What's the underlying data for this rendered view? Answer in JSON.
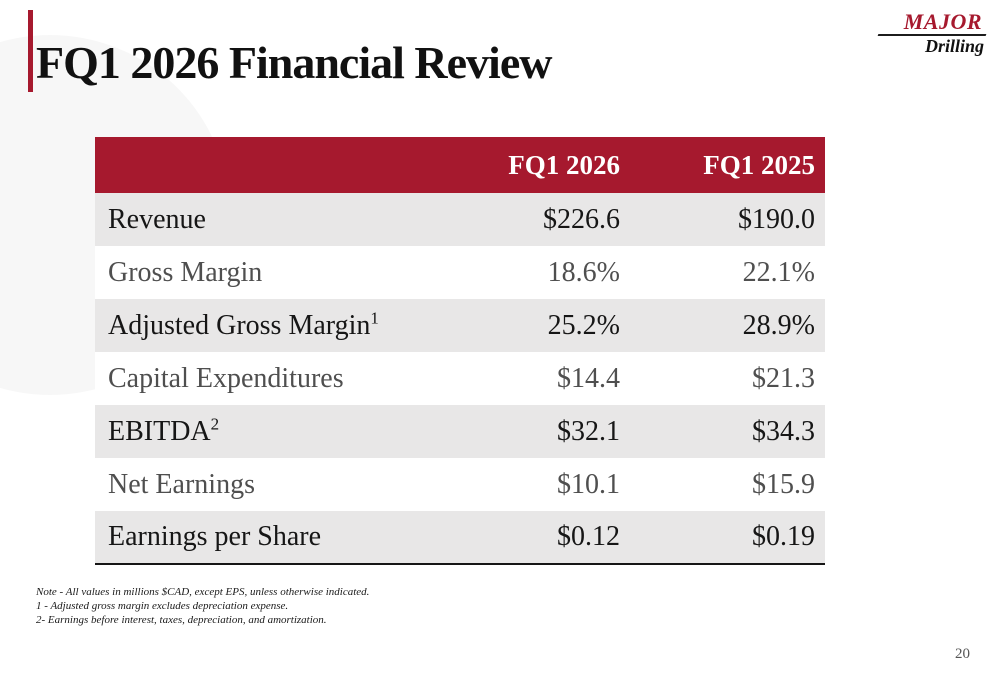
{
  "slide": {
    "title": "FQ1 2026 Financial Review",
    "page_number": "20"
  },
  "logo": {
    "primary": "MAJOR",
    "secondary": "Drilling"
  },
  "table": {
    "columns": [
      "",
      "FQ1 2026",
      "FQ1 2025"
    ],
    "rows": [
      {
        "label": "Revenue",
        "sup": "",
        "fq1_2026": "$226.6",
        "fq1_2025": "$190.0"
      },
      {
        "label": "Gross Margin",
        "sup": "",
        "fq1_2026": "18.6%",
        "fq1_2025": "22.1%"
      },
      {
        "label": "Adjusted Gross Margin",
        "sup": "1",
        "fq1_2026": "25.2%",
        "fq1_2025": "28.9%"
      },
      {
        "label": "Capital Expenditures",
        "sup": "",
        "fq1_2026": "$14.4",
        "fq1_2025": "$21.3"
      },
      {
        "label": "EBITDA",
        "sup": "2",
        "fq1_2026": "$32.1",
        "fq1_2025": "$34.3"
      },
      {
        "label": "Net Earnings",
        "sup": "",
        "fq1_2026": "$10.1",
        "fq1_2025": "$15.9"
      },
      {
        "label": "Earnings per Share",
        "sup": "",
        "fq1_2026": "$0.12",
        "fq1_2025": "$0.19"
      }
    ]
  },
  "footnotes": [
    "Note - All values in millions $CAD, except EPS, unless otherwise indicated.",
    "1 - Adjusted gross margin excludes depreciation expense.",
    "2- Earnings before interest, taxes, depreciation, and amortization."
  ],
  "colors": {
    "accent": "#A6192E",
    "row_alt": "#E8E7E7"
  }
}
